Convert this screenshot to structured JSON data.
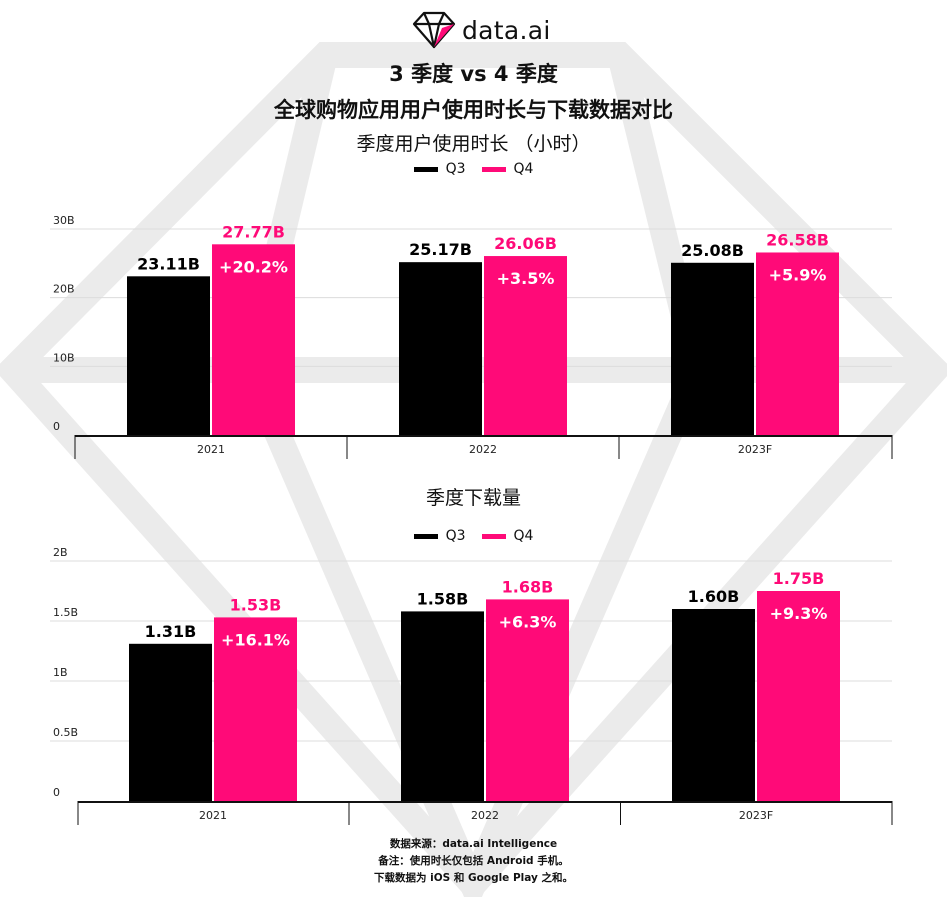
{
  "brand": {
    "logo_text": "data.ai",
    "logo_icon": "diamond-logo-icon"
  },
  "title_line1": "3 季度 vs 4 季度",
  "title_line2": "全球购物应用用户使用时长与下载数据对比",
  "colors": {
    "q3": "#000000",
    "q4": "#ff0a78",
    "grid": "#dcdcdc",
    "watermark": "#ebebeb"
  },
  "legend": {
    "q3": "Q3",
    "q4": "Q4"
  },
  "chart_data": [
    {
      "type": "bar",
      "title": "季度用户使用时长 （小时）",
      "categories": [
        "2021",
        "2022",
        "2023F"
      ],
      "series": [
        {
          "name": "Q3",
          "values": [
            23.11,
            25.17,
            25.08
          ],
          "labels": [
            "23.11B",
            "25.17B",
            "25.08B"
          ]
        },
        {
          "name": "Q4",
          "values": [
            27.77,
            26.06,
            26.58
          ],
          "labels": [
            "27.77B",
            "26.06B",
            "26.58B"
          ]
        }
      ],
      "growth_labels": [
        "+20.2%",
        "+3.5%",
        "+5.9%"
      ],
      "ylim": [
        0,
        30
      ],
      "yticks": [
        0,
        10,
        20,
        30
      ],
      "ytick_labels": [
        "0",
        "10B",
        "20B",
        "30B"
      ],
      "grid": true,
      "legend_position": "top-center"
    },
    {
      "type": "bar",
      "title": "季度下载量",
      "categories": [
        "2021",
        "2022",
        "2023F"
      ],
      "series": [
        {
          "name": "Q3",
          "values": [
            1.31,
            1.58,
            1.6
          ],
          "labels": [
            "1.31B",
            "1.58B",
            "1.60B"
          ]
        },
        {
          "name": "Q4",
          "values": [
            1.53,
            1.68,
            1.75
          ],
          "labels": [
            "1.53B",
            "1.68B",
            "1.75B"
          ]
        }
      ],
      "growth_labels": [
        "+16.1%",
        "+6.3%",
        "+9.3%"
      ],
      "ylim": [
        0,
        2
      ],
      "yticks": [
        0,
        0.5,
        1,
        1.5,
        2
      ],
      "ytick_labels": [
        "0",
        "0.5B",
        "1B",
        "1.5B",
        "2B"
      ],
      "grid": true,
      "legend_position": "top-center"
    }
  ],
  "footer": {
    "line1": "数据来源：data.ai Intelligence",
    "line2": "备注：使用时长仅包括 Android 手机。",
    "line3": "下载数据为 iOS 和 Google Play 之和。"
  }
}
